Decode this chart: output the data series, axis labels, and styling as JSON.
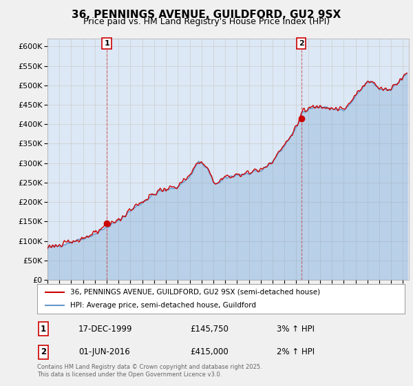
{
  "title": "36, PENNINGS AVENUE, GUILDFORD, GU2 9SX",
  "subtitle": "Price paid vs. HM Land Registry's House Price Index (HPI)",
  "ylim": [
    0,
    620000
  ],
  "yticks": [
    0,
    50000,
    100000,
    150000,
    200000,
    250000,
    300000,
    350000,
    400000,
    450000,
    500000,
    550000,
    600000
  ],
  "xlim_start": 1995.0,
  "xlim_end": 2025.5,
  "bg_color": "#f0f0f0",
  "plot_bg_color": "#dce8f5",
  "grid_color": "#bbbbbb",
  "line1_color": "#cc0000",
  "line2_color": "#6699cc",
  "purchase1_year": 2000.0,
  "purchase1_price": 145750,
  "purchase2_year": 2016.42,
  "purchase2_price": 415000,
  "legend_label1": "36, PENNINGS AVENUE, GUILDFORD, GU2 9SX (semi-detached house)",
  "legend_label2": "HPI: Average price, semi-detached house, Guildford",
  "table_rows": [
    {
      "num": "1",
      "date": "17-DEC-1999",
      "price": "£145,750",
      "hpi": "3% ↑ HPI"
    },
    {
      "num": "2",
      "date": "01-JUN-2016",
      "price": "£415,000",
      "hpi": "2% ↑ HPI"
    }
  ],
  "footer": "Contains HM Land Registry data © Crown copyright and database right 2025.\nThis data is licensed under the Open Government Licence v3.0.",
  "title_fontsize": 11,
  "subtitle_fontsize": 9,
  "tick_fontsize": 8
}
